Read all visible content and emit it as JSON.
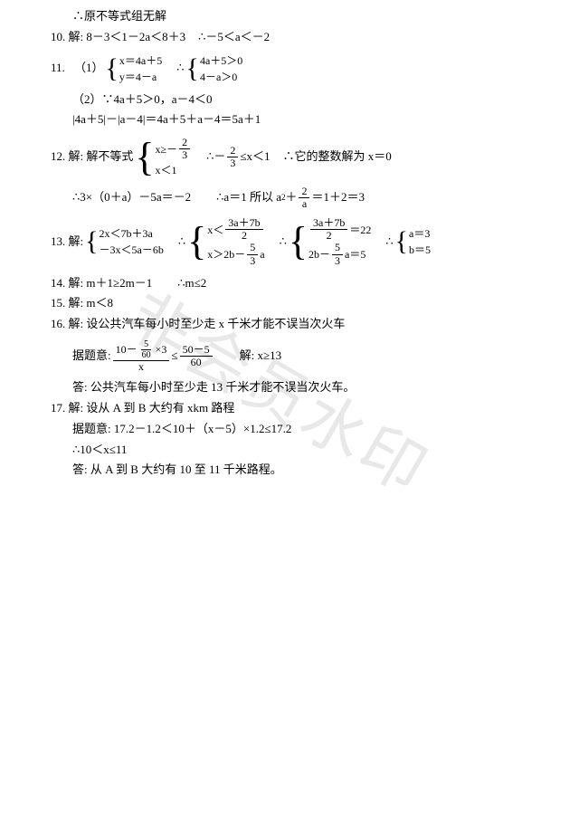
{
  "watermark": "非会员水印",
  "lines": {
    "l0": "∴原不等式组无解",
    "l10a": "10. 解: 8－3＜1－2a＜8＋3",
    "l10b": "∴－5＜a＜－2",
    "l11a_num": "11.",
    "l11a_p1": "（1）",
    "sys11a_r1": "x＝4a＋5",
    "sys11a_r2": "y＝4－a",
    "l11a_mid": "∴",
    "sys11b_r1": "4a＋5＞0",
    "sys11b_r2": "4－a＞0",
    "l11b": "（2）∵4a＋5＞0，a－4＜0",
    "l11c": "|4a＋5|－|a－4|＝4a＋5＋a－4＝5a＋1",
    "l12a_num": "12. 解: 解不等式",
    "sys12_r1a": "x≥－",
    "sys12_r1_fn": "2",
    "sys12_r1_fd": "3",
    "sys12_r2": "x＜1",
    "l12a_mid1": "∴－",
    "l12a_fn": "2",
    "l12a_fd": "3",
    "l12a_mid2": "≤x＜1",
    "l12a_mid3": "∴它的整数解为 x＝0",
    "l12b_a": "∴3×（0＋a）－5a＝－2",
    "l12b_b": "∴a＝1 所以 a",
    "l12b_c": "＋",
    "l12b_fn": "2",
    "l12b_fd": "a",
    "l12b_d": "＝1＋2＝3",
    "l13_num": "13. 解:",
    "sys13a_r1": "2x＜7b＋3a",
    "sys13a_r2": "－3x＜5a－6b",
    "l13_t1": "∴",
    "sys13b_r1a": "x＜",
    "sys13b_r1_fn": "3a＋7b",
    "sys13b_r1_fd": "2",
    "sys13b_r2a": "x＞2b－",
    "sys13b_r2_fn": "5",
    "sys13b_r2_fd": "3",
    "sys13b_r2b": "a",
    "l13_t2": "∴",
    "sys13c_r1_fn": "3a＋7b",
    "sys13c_r1_fd": "2",
    "sys13c_r1b": "＝22",
    "sys13c_r2a": "2b－",
    "sys13c_r2_fn": "5",
    "sys13c_r2_fd": "3",
    "sys13c_r2b": "a＝5",
    "l13_t3": "∴",
    "sys13d_r1": "a＝3",
    "sys13d_r2": "b＝5",
    "l14": "14. 解: m＋1≥2m－1",
    "l14b": "∴m≤2",
    "l15": "15. 解: m＜8",
    "l16": "16. 解: 设公共汽车每小时至少走 x 千米才能不误当次火车",
    "l16b_a": "据题意:",
    "l16b_fn_top_a": "10－",
    "l16b_fn_top_fn": "5",
    "l16b_fn_top_fd": "60",
    "l16b_fn_top_b": "×3",
    "l16b_fd": "x",
    "l16b_mid": "≤",
    "l16b_fn2": "50－5",
    "l16b_fd2": "60",
    "l16b_b": "解: x≥13",
    "l16c": "答: 公共汽车每小时至少走 13 千米才能不误当次火车。",
    "l17": "17. 解: 设从 A 到 B 大约有 xkm 路程",
    "l17b": "据题意: 17.2－1.2＜10＋（x－5）×1.2≤17.2",
    "l17c": "∴10＜x≤11",
    "l17d": "答: 从 A 到 B 大约有 10 至 11 千米路程。"
  }
}
